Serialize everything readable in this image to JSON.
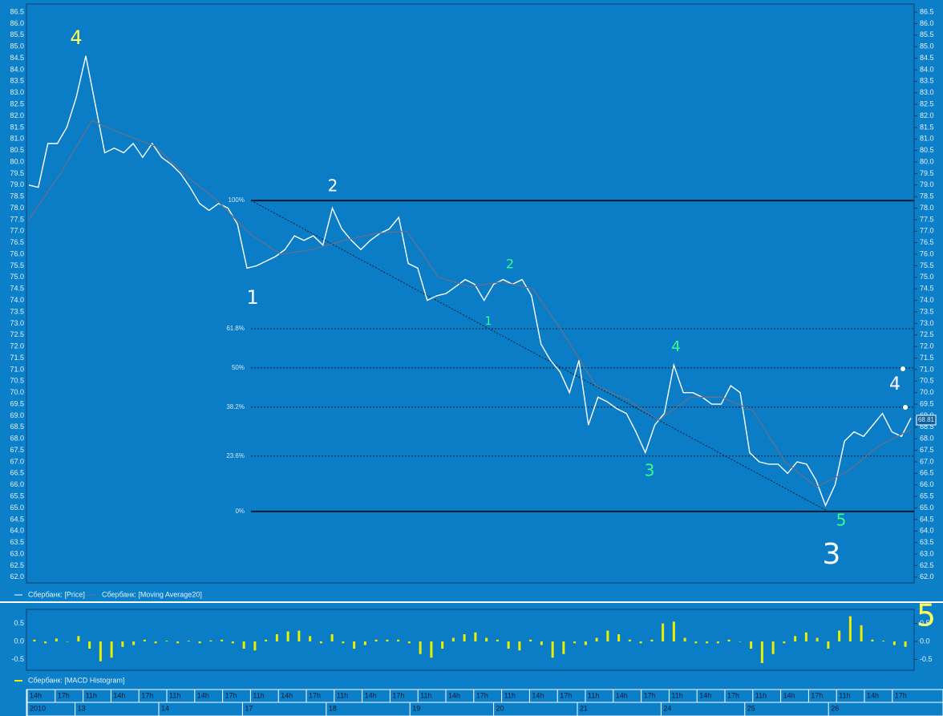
{
  "chart_data": [
    {
      "type": "line",
      "series": [
        {
          "name": "Сбербанк: [Price]",
          "color": "#ffffff",
          "values": [
            79.0,
            78.9,
            80.8,
            80.8,
            81.5,
            82.8,
            84.6,
            82.5,
            80.4,
            80.6,
            80.4,
            80.8,
            80.2,
            80.8,
            80.2,
            79.9,
            79.5,
            78.9,
            78.2,
            77.9,
            78.2,
            78.0,
            77.3,
            75.4,
            75.5,
            75.7,
            75.9,
            76.2,
            76.8,
            76.6,
            76.8,
            76.4,
            78.0,
            77.1,
            76.6,
            76.2,
            76.6,
            76.9,
            77.1,
            77.6,
            75.6,
            75.4,
            74.0,
            74.2,
            74.3,
            74.6,
            74.9,
            74.7,
            74.0,
            74.7,
            74.9,
            74.7,
            74.9,
            74.2,
            72.1,
            71.4,
            70.9,
            70.0,
            71.4,
            68.6,
            69.8,
            69.6,
            69.3,
            69.1,
            68.3,
            67.4,
            68.6,
            69.1,
            71.2,
            70.0,
            70.0,
            69.8,
            69.5,
            69.5,
            70.3,
            70.0,
            67.4,
            67.0,
            66.9,
            66.9,
            66.5,
            67.0,
            66.9,
            66.2,
            65.1,
            66.0,
            67.9,
            68.3,
            68.1,
            68.6,
            69.1,
            68.3,
            68.1,
            68.9
          ]
        },
        {
          "name": "Сбербанк: [Moving Average20]",
          "color": "#6e6e86",
          "values": [
            77.5,
            79.5,
            81.8,
            81.2,
            80.7,
            79.4,
            78.3,
            76.9,
            76.0,
            76.2,
            76.6,
            76.9,
            77.0,
            75.0,
            74.6,
            74.8,
            74.5,
            72.5,
            70.3,
            69.7,
            68.8,
            69.8,
            69.8,
            69.2,
            67.0,
            65.9,
            66.6,
            67.7,
            68.4
          ]
        }
      ],
      "ylim": [
        61.75,
        86.85
      ],
      "yticks": [
        86.5,
        {
          "value": 86,
          "label": "86.0"
        },
        85.5,
        {
          "value": 85,
          "label": "85.0"
        },
        84.5,
        {
          "value": 84,
          "label": "84.0"
        },
        83.5,
        {
          "value": 83,
          "label": "83.0"
        },
        82.5,
        {
          "value": 82,
          "label": "82.0"
        },
        81.5,
        {
          "value": 81,
          "label": "81.0"
        },
        80.5,
        {
          "value": 80,
          "label": "80.0"
        },
        79.5,
        {
          "value": 79,
          "label": "79.0"
        },
        78.5,
        {
          "value": 78,
          "label": "78.0"
        },
        77.5,
        {
          "value": 77,
          "label": "77.0"
        },
        76.5,
        {
          "value": 76,
          "label": "76.0"
        },
        75.5,
        {
          "value": 75,
          "label": "75.0"
        },
        74.5,
        {
          "value": 74,
          "label": "74.0"
        },
        73.5,
        {
          "value": 73,
          "label": "73.0"
        },
        72.5,
        {
          "value": 72,
          "label": "72.0"
        },
        71.5,
        {
          "value": 71,
          "label": "71.0"
        },
        70.5,
        {
          "value": 70,
          "label": "70.0"
        },
        69.5,
        {
          "value": 69,
          "label": "69.0"
        },
        68.5,
        {
          "value": 68,
          "label": "68.0"
        },
        67.5,
        {
          "value": 67,
          "label": "67.0"
        },
        66.5,
        {
          "value": 66,
          "label": "66.0"
        },
        65.5,
        {
          "value": 65,
          "label": "65.0"
        },
        64.5,
        {
          "value": 64,
          "label": "64.0"
        },
        63.5,
        {
          "value": 63,
          "label": "63.0"
        },
        62.5,
        {
          "value": 62,
          "label": "62.0"
        }
      ],
      "last_price": 68.81,
      "fib_levels": [
        {
          "label": "100%",
          "value": 78.33,
          "style": "solid"
        },
        {
          "label": "61.8%",
          "value": 72.77,
          "style": "dotted"
        },
        {
          "label": "50%",
          "value": 71.07,
          "style": "dotted"
        },
        {
          "label": "38.2%",
          "value": 69.37,
          "style": "dotted"
        },
        {
          "label": "23.6%",
          "value": 67.25,
          "style": "dotted"
        },
        {
          "label": "0%",
          "value": 64.85,
          "style": "solid"
        }
      ],
      "annotations": [
        {
          "text": "4",
          "color": "#ffff55"
        },
        {
          "text": "2",
          "color": "#ffffff"
        },
        {
          "text": "1",
          "color": "#ffffff"
        },
        {
          "text": "2",
          "color": "#33ff88"
        },
        {
          "text": "1",
          "color": "#33ff88"
        },
        {
          "text": "4",
          "color": "#33ff88"
        },
        {
          "text": "3",
          "color": "#33ff88"
        },
        {
          "text": "3",
          "color": "#ffffff"
        },
        {
          "text": "5",
          "color": "#33ff88"
        },
        {
          "text": "4",
          "color": "#ffffff"
        },
        {
          "text": "5",
          "color": "#ffff55"
        }
      ]
    },
    {
      "type": "bar",
      "series": [
        {
          "name": "Сбербанк: [MACD Histogram]",
          "color": "#e8f000",
          "values": [
            0.05,
            -0.05,
            0.08,
            0.0,
            0.15,
            -0.2,
            -0.55,
            -0.45,
            -0.15,
            -0.1,
            0.05,
            -0.05,
            0.02,
            -0.05,
            0.02,
            -0.05,
            0.03,
            0.05,
            -0.05,
            -0.2,
            -0.25,
            0.05,
            0.2,
            0.28,
            0.3,
            0.15,
            -0.05,
            0.2,
            -0.05,
            -0.2,
            -0.1,
            0.05,
            0.05,
            0.05,
            -0.05,
            -0.35,
            -0.45,
            -0.2,
            0.1,
            0.2,
            0.25,
            0.1,
            0.05,
            -0.2,
            -0.25,
            0.05,
            -0.1,
            -0.45,
            -0.35,
            -0.05,
            -0.1,
            0.1,
            0.3,
            0.2,
            0.05,
            -0.05,
            0.05,
            0.5,
            0.55,
            0.1,
            -0.05,
            -0.05,
            -0.05,
            0.05,
            0.0,
            -0.2,
            -0.6,
            -0.35,
            -0.05,
            0.15,
            0.25,
            0.1,
            -0.2,
            0.3,
            0.7,
            0.45,
            0.05,
            0.02,
            -0.1,
            -0.15
          ]
        }
      ],
      "ylim": [
        -0.8,
        0.89
      ],
      "yticks": [
        0.5,
        {
          "value": 0,
          "label": "0.0"
        },
        -0.5
      ]
    }
  ],
  "time_axis": {
    "hours": [
      "14h",
      "17h",
      "11h",
      "14h",
      "17h",
      "11h",
      "14h",
      "17h",
      "11h",
      "14h",
      "17h",
      "11h",
      "14h",
      "17h",
      "11h",
      "14h",
      "17h",
      "11h",
      "14h",
      "17h",
      "11h",
      "14h",
      "17h",
      "11h",
      "14h",
      "17h",
      "11h",
      "14h",
      "17h",
      "11h",
      "14h",
      "17h"
    ],
    "days": [
      "2010",
      "13",
      "14",
      "17",
      "18",
      "19",
      "20",
      "21",
      "24",
      "25",
      "26"
    ]
  }
}
